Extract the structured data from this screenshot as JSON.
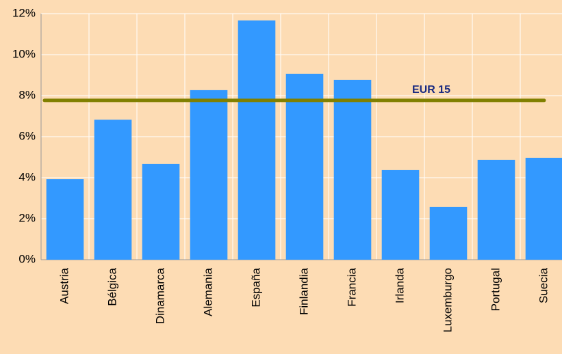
{
  "chart_data": {
    "type": "bar",
    "categories": [
      "Austria",
      "Bélgica",
      "Dinamarca",
      "Alemania",
      "España",
      "Finlandia",
      "Francia",
      "Irlanda",
      "Luxemburgo",
      "Portugal",
      "Suecia"
    ],
    "values": [
      3.93,
      6.83,
      4.67,
      8.27,
      11.67,
      9.07,
      8.77,
      4.37,
      2.57,
      4.87,
      4.97
    ],
    "color": "#3399ff",
    "ylim": [
      0,
      12
    ],
    "yticks": [
      {
        "value": 0,
        "label": "0%"
      },
      {
        "value": 2,
        "label": "2%"
      },
      {
        "value": 4,
        "label": "4%"
      },
      {
        "value": 6,
        "label": "6%"
      },
      {
        "value": 8,
        "label": "8%"
      },
      {
        "value": 10,
        "label": "10%"
      },
      {
        "value": 12,
        "label": "12%"
      }
    ],
    "grid": true,
    "reference_line": {
      "label": "EUR 15",
      "value": 7.77,
      "color": "#808000"
    }
  }
}
